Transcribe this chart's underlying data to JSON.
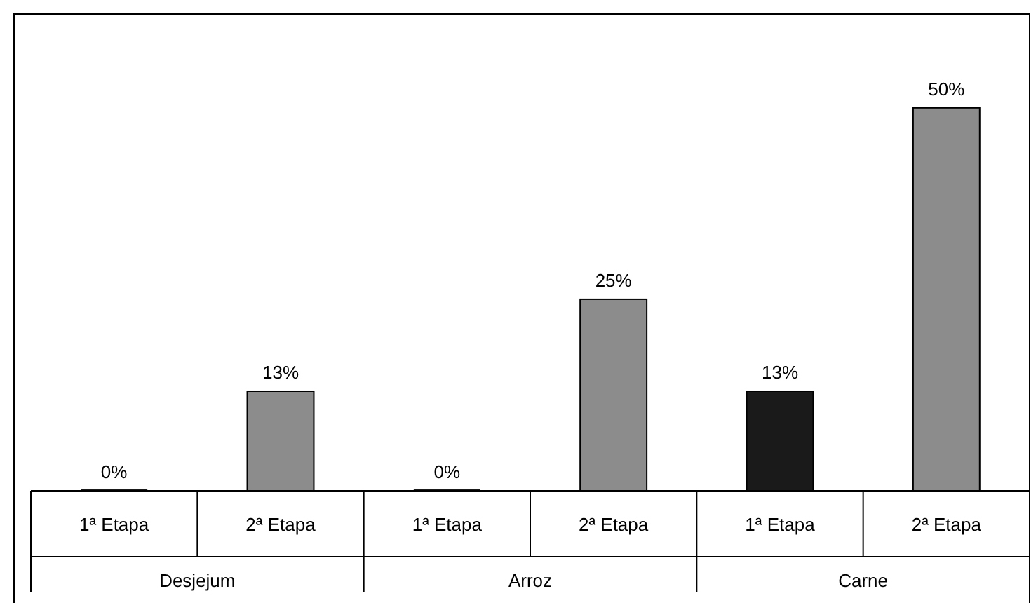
{
  "chart_data": {
    "type": "bar",
    "categories": [
      "Desjejum",
      "Arroz",
      "Carne"
    ],
    "series": [
      {
        "name": "1ª Etapa",
        "color": "#1a1a1a",
        "values": [
          0,
          0,
          13
        ],
        "value_labels": [
          "0%",
          "0%",
          "13%"
        ]
      },
      {
        "name": "2ª Etapa",
        "color": "#8c8c8c",
        "values": [
          13,
          25,
          50
        ],
        "value_labels": [
          "13%",
          "25%",
          "50%"
        ]
      }
    ],
    "legend": false
  }
}
